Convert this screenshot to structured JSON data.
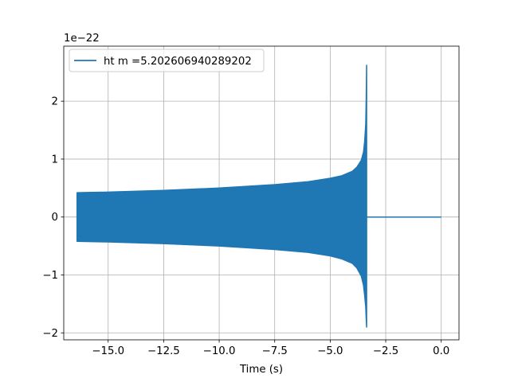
{
  "chart_data": {
    "type": "line",
    "title": "",
    "xlabel": "Time (s)",
    "ylabel": "",
    "y_offset_label": "1e−22",
    "xlim": [
      -17.0,
      0.8
    ],
    "ylim": [
      -2.12,
      2.95
    ],
    "grid": true,
    "legend_position": "upper-left",
    "x_ticks": [
      -15.0,
      -12.5,
      -10.0,
      -7.5,
      -5.0,
      -2.5,
      0.0
    ],
    "x_tick_labels": [
      "−15.0",
      "−12.5",
      "−10.0",
      "−7.5",
      "−5.0",
      "−2.5",
      "0.0"
    ],
    "y_ticks": [
      -2,
      -1,
      0,
      1,
      2
    ],
    "y_tick_labels": [
      "−2",
      "−1",
      "0",
      "1",
      "2"
    ],
    "series": [
      {
        "name": "ht m =5.20260694028920​2",
        "color": "#1f77b4",
        "envelope_x": [
          -16.4,
          -15.0,
          -12.5,
          -10.0,
          -7.5,
          -6.0,
          -5.0,
          -4.5,
          -4.0,
          -3.8,
          -3.6,
          -3.5,
          -3.45,
          -3.4,
          -3.38,
          -3.36
        ],
        "envelope_upper": [
          0.42,
          0.43,
          0.46,
          0.5,
          0.56,
          0.61,
          0.67,
          0.71,
          0.79,
          0.86,
          0.98,
          1.12,
          1.3,
          1.6,
          2.0,
          2.62
        ],
        "envelope_lower": [
          -0.42,
          -0.43,
          -0.46,
          -0.5,
          -0.56,
          -0.61,
          -0.67,
          -0.72,
          -0.8,
          -0.88,
          -1.02,
          -1.18,
          -1.35,
          -1.55,
          -1.75,
          -1.9
        ],
        "flat_x": [
          -3.36,
          0.0
        ],
        "flat_y": [
          0.0,
          0.0
        ]
      }
    ]
  }
}
